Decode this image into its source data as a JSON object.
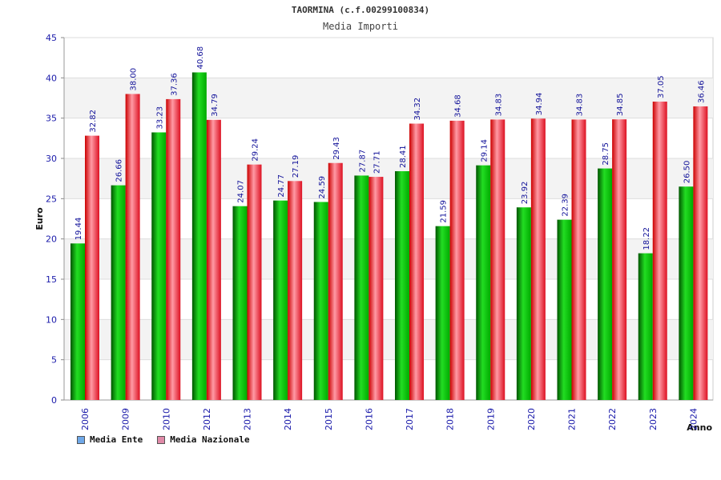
{
  "chart_data": {
    "type": "bar",
    "title": "TAORMINA (c.f.00299100834)",
    "subtitle": "Media Importi",
    "xlabel": "Anno",
    "ylabel": "Euro",
    "ylim": [
      0,
      45
    ],
    "yticks": [
      0,
      5,
      10,
      15,
      20,
      25,
      30,
      35,
      40,
      45
    ],
    "grid": true,
    "legend_position": "bottom-left",
    "categories": [
      "2006",
      "2009",
      "2010",
      "2012",
      "2013",
      "2014",
      "2015",
      "2016",
      "2017",
      "2018",
      "2019",
      "2020",
      "2021",
      "2022",
      "2023",
      "2024"
    ],
    "series": [
      {
        "name": "Media Ente",
        "color": "#00bb00",
        "legend_color": "#6fa8e8",
        "values": [
          19.44,
          26.66,
          33.23,
          40.68,
          24.07,
          24.77,
          24.59,
          27.87,
          28.41,
          21.59,
          29.14,
          23.92,
          22.39,
          28.75,
          18.22,
          26.5
        ],
        "labels": [
          "19.44",
          "26.66",
          "33.23",
          "40.68",
          "24.07",
          "24.77",
          "24.59",
          "27.87",
          "28.41",
          "21.59",
          "29.14",
          "23.92",
          "22.39",
          "28.75",
          "18.22",
          "26.50"
        ]
      },
      {
        "name": "Media Nazionale",
        "color": "#ee2233",
        "legend_color": "#e08aa8",
        "values": [
          32.82,
          38.0,
          37.36,
          34.79,
          29.24,
          27.19,
          29.43,
          27.71,
          34.32,
          34.68,
          34.83,
          34.94,
          34.83,
          34.85,
          37.05,
          36.46
        ],
        "labels": [
          "32.82",
          "38.00",
          "37.36",
          "34.79",
          "29.24",
          "27.19",
          "29.43",
          "27.71",
          "34.32",
          "34.68",
          "34.83",
          "34.94",
          "34.83",
          "34.85",
          "37.05",
          "36.46"
        ]
      }
    ]
  }
}
